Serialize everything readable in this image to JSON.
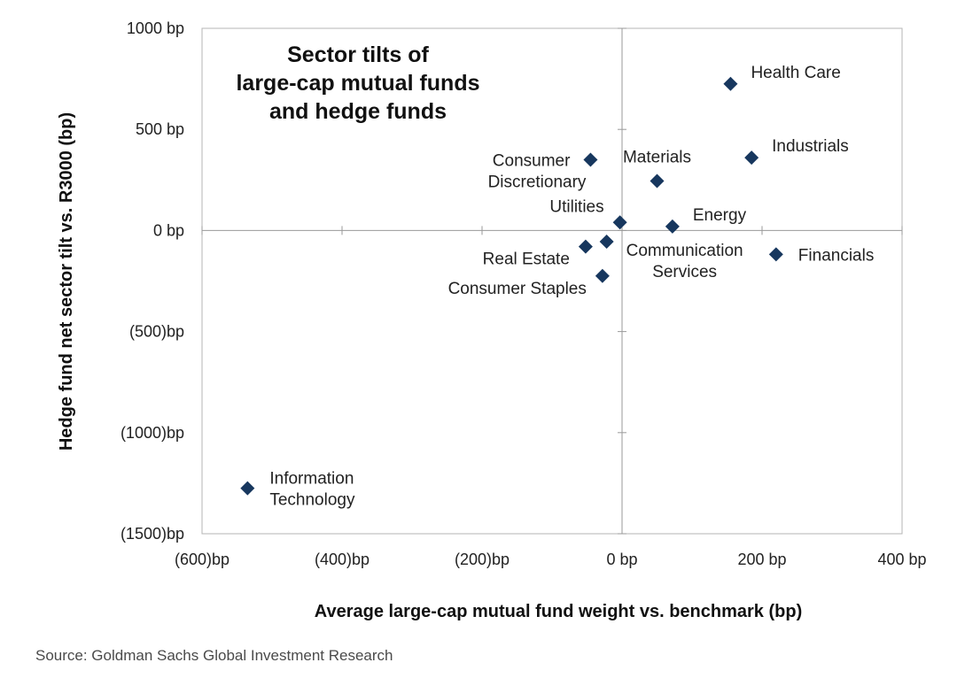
{
  "chart_data": {
    "type": "scatter",
    "title_lines": [
      "Sector tilts of",
      "large-cap mutual funds",
      "and hedge funds"
    ],
    "xlabel": "Average large-cap mutual fund weight vs. benchmark (bp)",
    "ylabel": "Hedge fund net sector tilt vs. R3000 (bp)",
    "xlim": [
      -600,
      400
    ],
    "ylim": [
      -1500,
      1000
    ],
    "x_ticks": [
      -600,
      -400,
      -200,
      0,
      200,
      400
    ],
    "x_tick_labels": [
      "(600)bp",
      "(400)bp",
      "(200)bp",
      "0 bp",
      "200 bp",
      "400 bp"
    ],
    "y_ticks": [
      1000,
      500,
      0,
      -500,
      -1000,
      -1500
    ],
    "y_tick_labels": [
      "1000 bp",
      "500 bp",
      "0 bp",
      "(500)bp",
      "(1000)bp",
      "(1500)bp"
    ],
    "marker_color": "#17375e",
    "points": [
      {
        "name": "Health Care",
        "label_lines": [
          "Health Care"
        ],
        "x": 155,
        "y": 725,
        "label_pos": "upper-right"
      },
      {
        "name": "Industrials",
        "label_lines": [
          "Industrials"
        ],
        "x": 185,
        "y": 360,
        "label_pos": "upper-right"
      },
      {
        "name": "Materials",
        "label_lines": [
          "Materials"
        ],
        "x": 50,
        "y": 245,
        "label_pos": "upper"
      },
      {
        "name": "Consumer Discretionary",
        "label_lines": [
          "Consumer",
          "Discretionary"
        ],
        "x": -45,
        "y": 350,
        "label_pos": "left"
      },
      {
        "name": "Utilities",
        "label_lines": [
          "Utilities"
        ],
        "x": -3,
        "y": 40,
        "label_pos": "upper-left"
      },
      {
        "name": "Energy",
        "label_lines": [
          "Energy"
        ],
        "x": 72,
        "y": 20,
        "label_pos": "upper-right"
      },
      {
        "name": "Real Estate",
        "label_lines": [
          "Real Estate"
        ],
        "x": -52,
        "y": -80,
        "label_pos": "lower-left"
      },
      {
        "name": "Communication Services",
        "label_lines": [
          "Communication",
          "Services"
        ],
        "x": -22,
        "y": -55,
        "label_pos": "lower-right"
      },
      {
        "name": "Consumer Staples",
        "label_lines": [
          "Consumer Staples"
        ],
        "x": -28,
        "y": -225,
        "label_pos": "lower-left"
      },
      {
        "name": "Financials",
        "label_lines": [
          "Financials"
        ],
        "x": 220,
        "y": -118,
        "label_pos": "right"
      },
      {
        "name": "Information Technology",
        "label_lines": [
          "Information",
          "Technology"
        ],
        "x": -535,
        "y": -1275,
        "label_pos": "right"
      }
    ]
  },
  "source": "Source: Goldman Sachs Global Investment Research"
}
